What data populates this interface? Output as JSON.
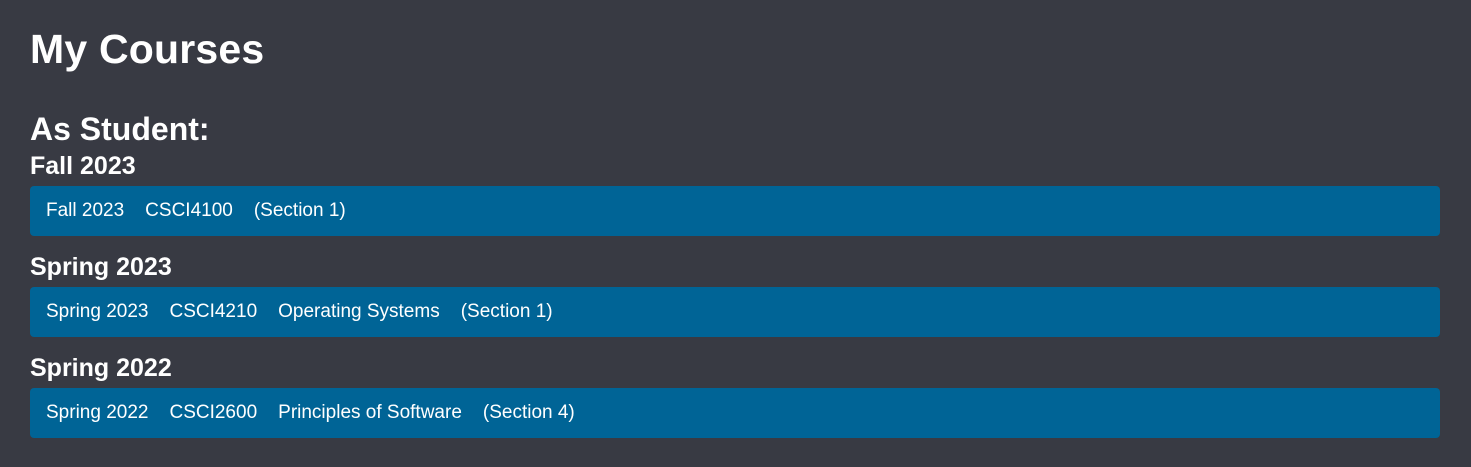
{
  "page": {
    "title": "My Courses",
    "background_color": "#383a43",
    "row_color": "#006496"
  },
  "student_section": {
    "heading": "As Student:",
    "terms": [
      {
        "heading": "Fall 2023",
        "course": {
          "term": "Fall 2023",
          "code": "CSCI4100",
          "name": "",
          "section": "(Section 1)"
        }
      },
      {
        "heading": "Spring 2023",
        "course": {
          "term": "Spring 2023",
          "code": "CSCI4210",
          "name": "Operating Systems",
          "section": "(Section 1)"
        }
      },
      {
        "heading": "Spring 2022",
        "course": {
          "term": "Spring 2022",
          "code": "CSCI2600",
          "name": "Principles of Software",
          "section": "(Section 4)"
        }
      }
    ]
  }
}
